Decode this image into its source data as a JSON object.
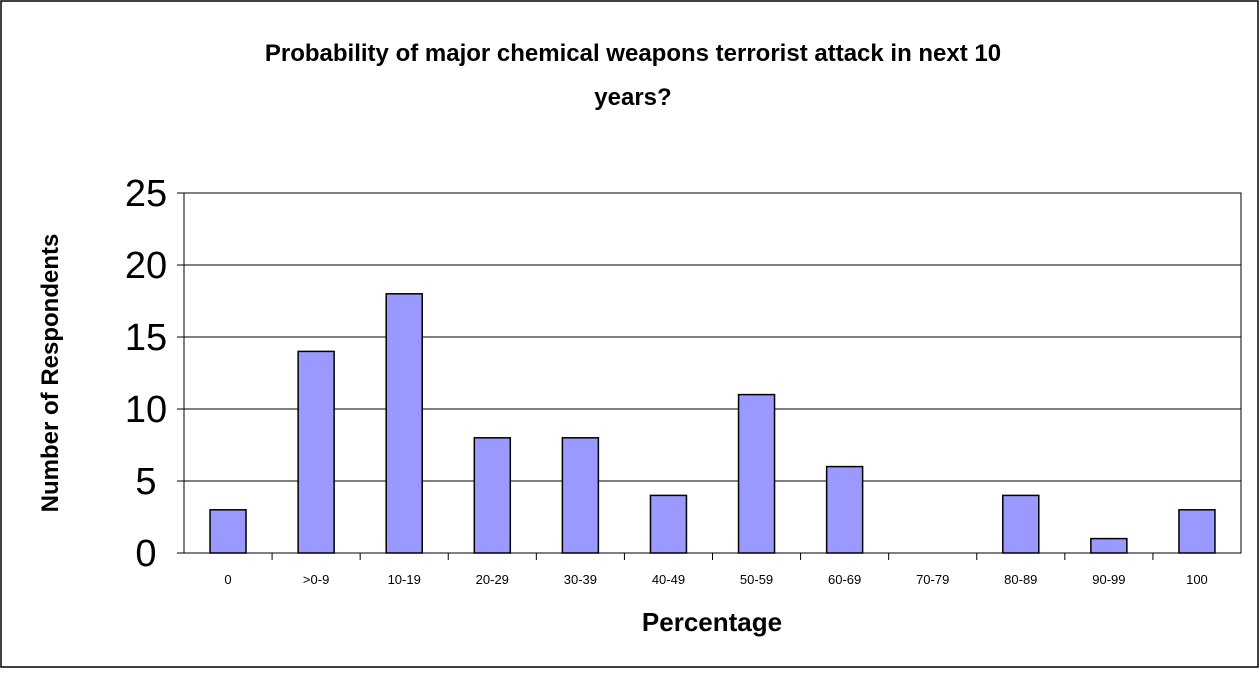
{
  "chart_data": {
    "type": "bar",
    "title_line1": "Probability of major chemical weapons terrorist attack in next 10",
    "title_line2": "years?",
    "xlabel": "Percentage",
    "ylabel": "Number of Respondents",
    "categories": [
      "0",
      ">0-9",
      "10-19",
      "20-29",
      "30-39",
      "40-49",
      "50-59",
      "60-69",
      "70-79",
      "80-89",
      "90-99",
      "100"
    ],
    "values": [
      3,
      14,
      18,
      8,
      8,
      4,
      11,
      6,
      0,
      4,
      1,
      3
    ],
    "ylim": [
      0,
      25
    ],
    "yticks": [
      0,
      5,
      10,
      15,
      20,
      25
    ],
    "grid": true,
    "colors": {
      "bar_fill": "#9999ff",
      "bar_stroke": "#000000",
      "gridline": "#000000",
      "frame": "#000000"
    }
  }
}
